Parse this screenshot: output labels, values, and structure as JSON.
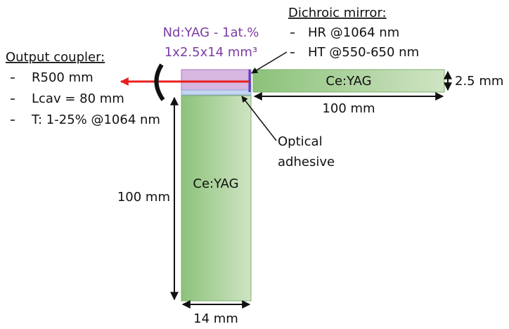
{
  "dichroic_mirror": {
    "title": "Dichroic mirror:",
    "items": [
      "HR @1064 nm",
      "HT @550-650 nm"
    ]
  },
  "nd_yag": {
    "label": "Nd:YAG - 1at.%",
    "size": "1x2.5x14 mm³"
  },
  "output_coupler": {
    "title": "Output coupler:",
    "items": [
      "R500 mm",
      "Lcav = 80 mm",
      "T: 1-25% @1064 nm"
    ]
  },
  "horizontal_crystal": {
    "label": "Ce:YAG",
    "thickness": "2.5 mm",
    "length": "100 mm"
  },
  "adhesive": {
    "lines": [
      "Optical",
      "adhesive"
    ]
  },
  "vertical_crystal": {
    "label": "Ce:YAG",
    "length": "100 mm",
    "width": "14 mm"
  }
}
